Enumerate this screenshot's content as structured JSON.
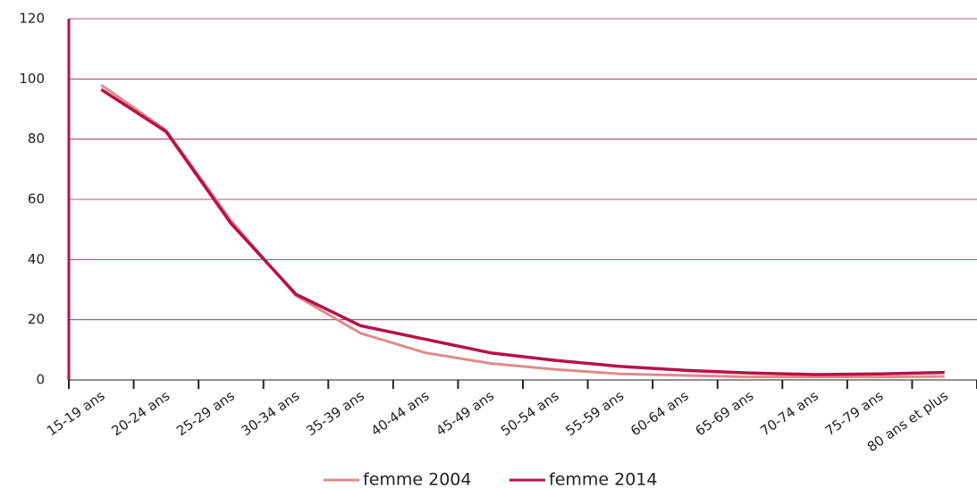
{
  "chart_data": {
    "type": "line",
    "categories": [
      "15-19 ans",
      "20-24 ans",
      "25-29 ans",
      "30-34 ans",
      "35-39 ans",
      "40-44 ans",
      "45-49 ans",
      "50-54 ans",
      "55-59 ans",
      "60-64 ans",
      "65-69 ans",
      "70-74 ans",
      "75-79 ans",
      "80 ans et plus"
    ],
    "series": [
      {
        "name": "femme 2004",
        "color": "#e08a8a",
        "values": [
          98,
          83,
          53,
          28,
          15.5,
          9,
          5.5,
          3.5,
          2,
          1.5,
          1,
          1,
          1,
          1.2
        ]
      },
      {
        "name": "femme 2014",
        "color": "#b5124a",
        "values": [
          96.5,
          82.5,
          52,
          28.5,
          18,
          13.5,
          9,
          6.5,
          4.5,
          3.2,
          2.3,
          1.8,
          2,
          2.5
        ]
      }
    ],
    "ylim": [
      0,
      120
    ],
    "yticks": [
      0,
      20,
      40,
      60,
      80,
      100,
      120
    ],
    "grid": true,
    "legend": "bottom"
  }
}
